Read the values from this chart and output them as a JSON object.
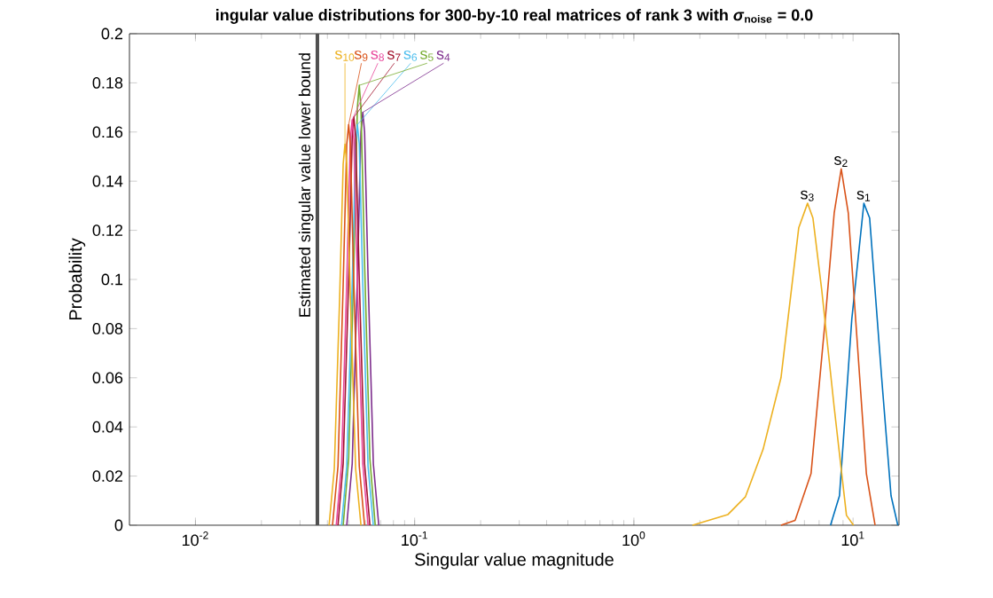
{
  "chart_data": {
    "type": "line",
    "title": "ingular value distributions for 300-by-10 real matrices of rank 3 with *σ*$_{noise}$ = 0.0",
    "xlabel": "Singular value magnitude",
    "ylabel": "Probability",
    "log": "x",
    "xlim": [
      0.005,
      16.2
    ],
    "ylim": [
      0,
      0.2
    ],
    "xticks": [
      {
        "value": 0.01,
        "label": "10$^{-2}$"
      },
      {
        "value": 0.1,
        "label": "10$^{-1}$"
      },
      {
        "value": 1,
        "label": "10$^{0}$"
      },
      {
        "value": 10,
        "label": "10$^{1}$"
      }
    ],
    "yticks": [
      0,
      0.02,
      0.04,
      0.06,
      0.08,
      0.1,
      0.12,
      0.14,
      0.16,
      0.18,
      0.2
    ],
    "ref_lines": [
      {
        "axis": "x",
        "value": 0.036,
        "label": "Estimated singular value lower bound",
        "color": "#505050"
      }
    ],
    "series": [
      {
        "name": "s$_{1}$",
        "color": "#0072bd",
        "x": [
          7.89,
          8.67,
          9.87,
          11.2,
          11.9,
          13.5,
          14.9,
          16.0
        ],
        "values": [
          0,
          0.012,
          0.084,
          0.131,
          0.125,
          0.06,
          0.012,
          0
        ]
      },
      {
        "name": "s$_{2}$",
        "color": "#d95319",
        "x": [
          4.69,
          5.44,
          6.43,
          7.47,
          8.2,
          8.83,
          9.51,
          10.4,
          11.5,
          12.6
        ],
        "values": [
          0,
          0.002,
          0.021,
          0.084,
          0.127,
          0.145,
          0.127,
          0.077,
          0.021,
          0
        ]
      },
      {
        "name": "s$_{3}$",
        "color": "#edb120",
        "x": [
          1.85,
          2.68,
          3.23,
          3.89,
          4.69,
          5.65,
          6.2,
          6.56,
          7.19,
          8.2,
          9.33,
          10.05
        ],
        "values": [
          0,
          0.0043,
          0.0116,
          0.031,
          0.06,
          0.121,
          0.131,
          0.125,
          0.096,
          0.048,
          0.004,
          0
        ]
      },
      {
        "name": "s$_{4}$",
        "color": "#7e2f8e",
        "x": [
          0.049,
          0.0519,
          0.0548,
          0.0569,
          0.058,
          0.0591,
          0.0613,
          0.0648,
          0.0686
        ],
        "values": [
          0,
          0.025,
          0.101,
          0.16,
          0.168,
          0.16,
          0.101,
          0.025,
          0
        ]
      },
      {
        "name": "s$_{5}$",
        "color": "#77ac30",
        "x": [
          0.0472,
          0.05,
          0.0528,
          0.0548,
          0.0559,
          0.0569,
          0.0591,
          0.0625,
          0.0661
        ],
        "values": [
          0,
          0.027,
          0.107,
          0.17,
          0.179,
          0.17,
          0.107,
          0.027,
          0
        ]
      },
      {
        "name": "s$_{6}$",
        "color": "#4dbeee",
        "x": [
          0.0464,
          0.049,
          0.0519,
          0.0538,
          0.0548,
          0.0559,
          0.058,
          0.0613,
          0.0648
        ],
        "values": [
          0,
          0.024,
          0.098,
          0.155,
          0.163,
          0.155,
          0.098,
          0.024,
          0
        ]
      },
      {
        "name": "s$_{7}$",
        "color": "#a2142f",
        "x": [
          0.0447,
          0.0472,
          0.05,
          0.0519,
          0.0528,
          0.0538,
          0.0559,
          0.0591,
          0.0625
        ],
        "values": [
          0,
          0.025,
          0.1,
          0.158,
          0.166,
          0.158,
          0.1,
          0.025,
          0
        ]
      },
      {
        "name": "s$_{8}$",
        "color": "#e8479b",
        "x": [
          0.0439,
          0.0464,
          0.049,
          0.0509,
          0.0519,
          0.0528,
          0.0548,
          0.058,
          0.0613
        ],
        "values": [
          0,
          0.025,
          0.099,
          0.157,
          0.165,
          0.157,
          0.099,
          0.025,
          0
        ]
      },
      {
        "name": "s$_{9}$",
        "color": "#d95319",
        "x": [
          0.0422,
          0.0447,
          0.0472,
          0.049,
          0.05,
          0.0509,
          0.0528,
          0.0559,
          0.0591
        ],
        "values": [
          0,
          0.024,
          0.098,
          0.155,
          0.163,
          0.155,
          0.098,
          0.024,
          0
        ]
      },
      {
        "name": "s$_{10}$",
        "color": "#edb120",
        "x": [
          0.0407,
          0.043,
          0.0455,
          0.0472,
          0.0481,
          0.049,
          0.0509,
          0.0538,
          0.0569
        ],
        "values": [
          0,
          0.023,
          0.093,
          0.147,
          0.155,
          0.147,
          0.093,
          0.023,
          0
        ]
      }
    ]
  }
}
